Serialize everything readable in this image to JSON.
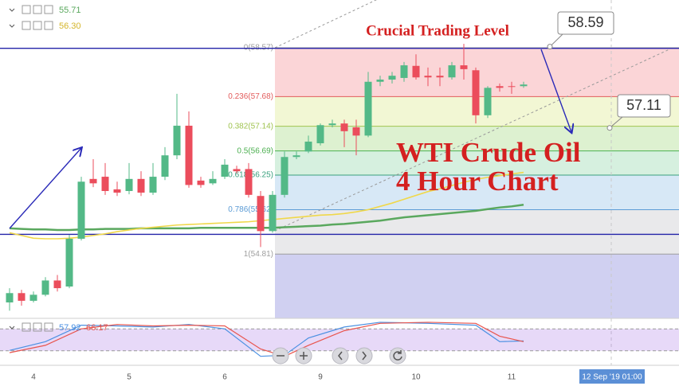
{
  "chart_data": {
    "type": "candlestick",
    "title": "Crucial Trading Level",
    "annotation": [
      "WTI Crude Oil",
      "4 Hour Chart"
    ],
    "categories": [
      null,
      null,
      "4",
      null,
      null,
      null,
      null,
      null,
      null,
      null,
      "5",
      null,
      null,
      null,
      null,
      null,
      null,
      null,
      "6",
      null,
      null,
      null,
      null,
      null,
      null,
      null,
      "9",
      null,
      null,
      null,
      null,
      null,
      null,
      null,
      "10",
      null,
      null,
      null,
      null,
      null,
      null,
      null,
      "11",
      null
    ],
    "open": [
      53.93,
      54.1,
      53.96,
      54.07,
      54.33,
      54.22,
      55.09,
      56.18,
      56.22,
      55.99,
      55.96,
      56.18,
      55.93,
      56.22,
      56.61,
      57.15,
      56.15,
      56.1,
      56.22,
      56.36,
      56.36,
      55.87,
      55.23,
      55.89,
      56.58,
      56.68,
      56.83,
      57.16,
      57.19,
      57.12,
      56.97,
      57.95,
      57.99,
      58.02,
      58.24,
      58.06,
      58.06,
      58.03,
      58.25,
      58.16,
      57.34,
      57.87,
      57.87,
      57.87
    ],
    "high": [
      54.19,
      54.16,
      54.13,
      54.39,
      54.43,
      55.16,
      56.22,
      56.54,
      56.47,
      56.13,
      56.47,
      56.32,
      56.47,
      56.76,
      57.73,
      57.41,
      56.22,
      56.32,
      56.54,
      56.42,
      56.47,
      55.96,
      55.96,
      56.68,
      56.68,
      56.97,
      57.19,
      57.26,
      57.26,
      57.26,
      58.13,
      58.06,
      58.13,
      58.31,
      58.45,
      58.21,
      58.21,
      58.31,
      58.64,
      58.21,
      57.87,
      57.92,
      57.95,
      57.95
    ],
    "low": [
      53.78,
      53.87,
      53.93,
      54.04,
      54.13,
      54.19,
      55.06,
      56.03,
      55.89,
      55.87,
      55.9,
      55.87,
      55.89,
      56.16,
      56.54,
      56.02,
      56.02,
      56.07,
      56.18,
      56.28,
      55.84,
      54.94,
      55.2,
      55.84,
      56.54,
      56.65,
      56.79,
      57.12,
      56.76,
      56.61,
      56.94,
      57.87,
      57.92,
      57.95,
      57.99,
      57.87,
      57.87,
      57.99,
      57.99,
      57.19,
      57.29,
      57.77,
      57.73,
      57.84
    ],
    "close": [
      54.1,
      53.96,
      54.07,
      54.33,
      54.19,
      55.09,
      56.13,
      56.1,
      55.96,
      55.93,
      56.18,
      55.93,
      56.22,
      56.61,
      57.15,
      56.07,
      56.07,
      56.18,
      56.44,
      56.32,
      55.89,
      55.23,
      55.89,
      56.58,
      56.61,
      56.86,
      57.16,
      57.19,
      57.05,
      56.97,
      57.95,
      57.99,
      58.06,
      58.25,
      58.03,
      58.03,
      58.03,
      58.25,
      58.18,
      57.34,
      57.84,
      57.84,
      57.86,
      57.9
    ],
    "up_color": "#53b987",
    "down_color": "#eb4d5c",
    "ylim": [
      53.64,
      59.44
    ],
    "moving_averages": [
      {
        "color": "#5aa85e",
        "values": [
          55.28,
          55.27,
          55.26,
          55.26,
          55.25,
          55.25,
          55.26,
          55.26,
          55.27,
          55.27,
          55.27,
          55.28,
          55.28,
          55.28,
          55.28,
          55.28,
          55.29,
          55.29,
          55.29,
          55.29,
          55.29,
          55.29,
          55.29,
          55.3,
          55.31,
          55.32,
          55.33,
          55.35,
          55.36,
          55.38,
          55.4,
          55.42,
          55.45,
          55.48,
          55.5,
          55.52,
          55.54,
          55.56,
          55.58,
          55.6,
          55.63,
          55.66,
          55.68,
          55.71
        ]
      },
      {
        "color": "#f0d84a",
        "values": [
          55.2,
          55.15,
          55.1,
          55.09,
          55.09,
          55.1,
          55.12,
          55.15,
          55.18,
          55.22,
          55.25,
          55.28,
          55.3,
          55.32,
          55.34,
          55.35,
          55.36,
          55.37,
          55.38,
          55.39,
          55.4,
          55.42,
          55.44,
          55.46,
          55.48,
          55.5,
          55.52,
          55.53,
          55.55,
          55.58,
          55.62,
          55.68,
          55.74,
          55.81,
          55.88,
          55.95,
          56.0,
          56.06,
          56.12,
          56.17,
          56.21,
          56.24,
          56.27,
          56.3
        ]
      }
    ],
    "legend_values": [
      55.71,
      {
        "value": 56.3,
        "label": "56.30"
      }
    ],
    "fib_levels": [
      {
        "value": 58.57,
        "label": "0(58.57)",
        "color": "#9e9e9e",
        "band": "rgba(242,105,110,0.28)"
      },
      {
        "value": 57.68,
        "label": "0.236(57.68)",
        "color": "#e25c5c",
        "band": "rgba(214,230,120,0.32)"
      },
      {
        "value": 57.14,
        "label": "0.382(57.14)",
        "color": "#9fc34f",
        "band": "rgba(150,210,110,0.32)"
      },
      {
        "value": 56.69,
        "label": "0.5(56.69)",
        "color": "#4caf50",
        "band": "rgba(120,205,150,0.30)"
      },
      {
        "value": 56.25,
        "label": "0.618(56.25)",
        "color": "#3aa17e",
        "band": "rgba(140,190,230,0.35)"
      },
      {
        "value": 55.62,
        "label": "0.786(55.62)",
        "color": "#5b9bd5",
        "band": "rgba(200,200,205,0.40)"
      },
      {
        "value": 54.81,
        "label": "1(54.81)",
        "color": "#9e9e9e",
        "band": "rgba(150,150,225,0.45)"
      }
    ],
    "hlines": [
      58.56,
      55.17
    ],
    "hline_color": "#2323a8",
    "price_flags": [
      58.59,
      57.11
    ],
    "crosshair_label": "12 Sep '19 01:00",
    "oscillator": {
      "ylim": [
        0,
        100
      ],
      "bands": [
        80,
        20
      ],
      "x": [
        0,
        3,
        6,
        9,
        12,
        15,
        18,
        21,
        23,
        25,
        28,
        31,
        35,
        39,
        41,
        43
      ],
      "series": [
        {
          "color": "#4a90e2",
          "values": [
            21,
            45,
            90,
            88,
            85,
            92,
            80,
            5,
            8,
            55,
            85,
            98,
            95,
            90,
            45,
            47
          ]
        },
        {
          "color": "#e8554e",
          "values": [
            15,
            35,
            80,
            92,
            88,
            90,
            88,
            25,
            5,
            35,
            75,
            95,
            98,
            95,
            60,
            45
          ]
        }
      ],
      "legend_values": [
        57.92,
        66.17
      ]
    }
  }
}
